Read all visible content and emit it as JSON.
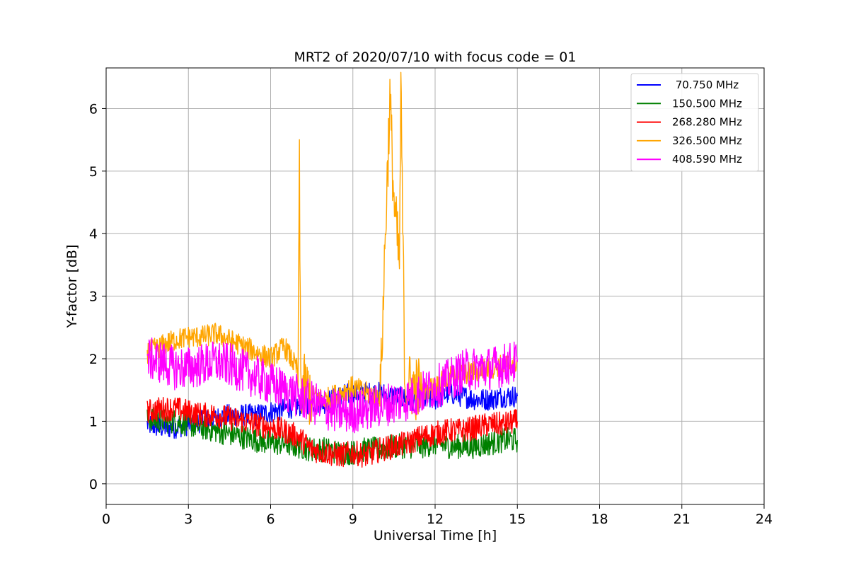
{
  "chart_data": {
    "type": "line",
    "title": "MRT2 of 2020/07/10 with focus code = 01",
    "xlabel": "Universal Time [h]",
    "ylabel": "Y-factor [dB]",
    "xlim": [
      0,
      24
    ],
    "ylim": [
      -0.33,
      6.65
    ],
    "xticks": [
      0,
      3,
      6,
      9,
      12,
      15,
      18,
      21,
      24
    ],
    "yticks": [
      0,
      1,
      2,
      3,
      4,
      5,
      6
    ],
    "xtick_labels": [
      "0",
      "3",
      "6",
      "9",
      "12",
      "15",
      "18",
      "21",
      "24"
    ],
    "ytick_labels": [
      "0",
      "1",
      "2",
      "3",
      "4",
      "5",
      "6"
    ],
    "grid": true,
    "legend_position": "top-right",
    "series": [
      {
        "name": " 70.750 MHz",
        "color": "#0000ff",
        "x": [
          1.5,
          2.0,
          2.5,
          3.0,
          3.5,
          4.0,
          4.5,
          5.0,
          5.5,
          6.0,
          6.5,
          7.0,
          7.5,
          8.0,
          8.5,
          9.0,
          9.5,
          10.0,
          10.5,
          11.0,
          11.5,
          12.0,
          12.5,
          13.0,
          13.5,
          14.0,
          14.5,
          15.0
        ],
        "y": [
          0.95,
          0.9,
          0.9,
          0.95,
          1.0,
          1.05,
          1.1,
          1.1,
          1.1,
          1.15,
          1.2,
          1.25,
          1.3,
          1.3,
          1.4,
          1.45,
          1.45,
          1.45,
          1.4,
          1.35,
          1.35,
          1.35,
          1.45,
          1.4,
          1.35,
          1.35,
          1.4,
          1.4
        ],
        "noise": 0.18
      },
      {
        "name": "150.500 MHz",
        "color": "#008000",
        "x": [
          1.5,
          2.0,
          2.5,
          3.0,
          3.5,
          4.0,
          4.5,
          5.0,
          5.5,
          6.0,
          6.5,
          7.0,
          7.5,
          8.0,
          8.5,
          9.0,
          9.5,
          10.0,
          10.5,
          11.0,
          11.5,
          12.0,
          12.5,
          13.0,
          13.5,
          14.0,
          14.5,
          15.0
        ],
        "y": [
          1.05,
          1.0,
          1.0,
          0.95,
          0.9,
          0.85,
          0.8,
          0.75,
          0.7,
          0.65,
          0.65,
          0.6,
          0.55,
          0.55,
          0.5,
          0.5,
          0.55,
          0.55,
          0.6,
          0.6,
          0.6,
          0.65,
          0.6,
          0.6,
          0.6,
          0.65,
          0.7,
          0.7
        ],
        "noise": 0.2
      },
      {
        "name": "268.280 MHz",
        "color": "#ff0000",
        "x": [
          1.5,
          2.0,
          2.5,
          3.0,
          3.5,
          4.0,
          4.5,
          5.0,
          5.5,
          6.0,
          6.5,
          7.0,
          7.5,
          8.0,
          8.5,
          9.0,
          9.5,
          10.0,
          10.5,
          11.0,
          11.5,
          12.0,
          12.5,
          13.0,
          13.5,
          14.0,
          14.5,
          15.0
        ],
        "y": [
          1.15,
          1.2,
          1.2,
          1.15,
          1.1,
          1.1,
          1.05,
          1.0,
          0.95,
          0.9,
          0.85,
          0.75,
          0.55,
          0.5,
          0.45,
          0.5,
          0.45,
          0.55,
          0.6,
          0.65,
          0.75,
          0.8,
          0.85,
          0.85,
          0.9,
          0.95,
          0.95,
          1.0
        ],
        "noise": 0.2
      },
      {
        "name": "326.500 MHz",
        "color": "#ffa500",
        "x": [
          1.5,
          2.0,
          2.5,
          3.0,
          3.5,
          4.0,
          4.5,
          5.0,
          5.5,
          6.0,
          6.5,
          7.0,
          7.05,
          7.1,
          7.5,
          8.0,
          8.5,
          9.0,
          9.5,
          10.0,
          10.2,
          10.35,
          10.5,
          10.7,
          10.75,
          10.9,
          11.5,
          12.0,
          12.5,
          13.0,
          13.5,
          14.0,
          14.5,
          15.0
        ],
        "y": [
          2.1,
          2.2,
          2.3,
          2.35,
          2.35,
          2.4,
          2.3,
          2.2,
          2.1,
          2.0,
          2.2,
          1.8,
          5.0,
          1.6,
          1.4,
          1.35,
          1.45,
          1.55,
          1.45,
          1.4,
          4.2,
          6.15,
          4.5,
          3.5,
          6.3,
          1.6,
          1.5,
          1.55,
          1.7,
          1.75,
          1.8,
          1.85,
          1.9,
          1.95
        ],
        "noise": 0.18
      },
      {
        "name": "408.590 MHz",
        "color": "#ff00ff",
        "x": [
          1.5,
          2.0,
          2.5,
          3.0,
          3.5,
          4.0,
          4.5,
          5.0,
          5.5,
          6.0,
          6.5,
          7.0,
          7.5,
          8.0,
          8.5,
          9.0,
          9.5,
          10.0,
          10.5,
          11.0,
          11.5,
          12.0,
          12.5,
          13.0,
          13.5,
          14.0,
          14.5,
          15.0
        ],
        "y": [
          2.0,
          1.95,
          1.85,
          1.85,
          1.9,
          1.95,
          1.9,
          1.8,
          1.7,
          1.6,
          1.5,
          1.4,
          1.3,
          1.2,
          1.15,
          1.15,
          1.2,
          1.25,
          1.3,
          1.35,
          1.45,
          1.55,
          1.65,
          1.8,
          1.85,
          1.85,
          1.9,
          1.95
        ],
        "noise": 0.35
      }
    ]
  }
}
